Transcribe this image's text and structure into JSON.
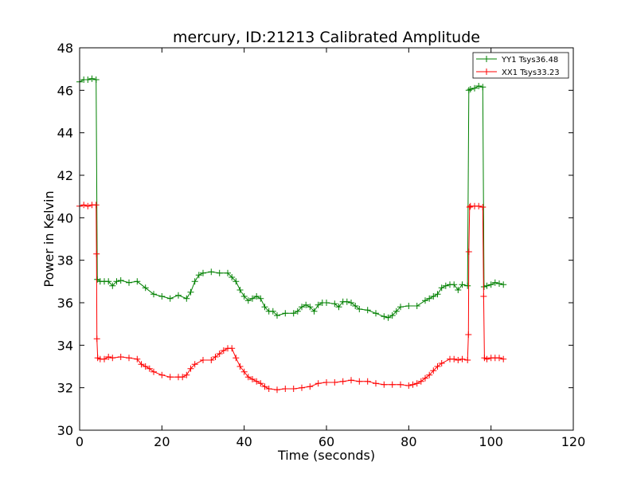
{
  "chart_data": {
    "type": "line",
    "title": "mercury, ID:21213 Calibrated Amplitude",
    "xlabel": "Time (seconds)",
    "ylabel": "Power in Kelvin",
    "xlim": [
      0,
      120
    ],
    "ylim": [
      30,
      48
    ],
    "xticks": [
      0,
      20,
      40,
      60,
      80,
      100,
      120
    ],
    "yticks": [
      30,
      32,
      34,
      36,
      38,
      40,
      42,
      44,
      46,
      48
    ],
    "grid": false,
    "legend_position": "top-right",
    "marker": "+",
    "series": [
      {
        "name": "YY1 Tsys36.48",
        "color": "#008000",
        "points": [
          [
            0.0,
            46.4
          ],
          [
            1.0,
            46.5
          ],
          [
            2.0,
            46.5
          ],
          [
            3.0,
            46.55
          ],
          [
            4.0,
            46.5
          ],
          [
            4.3,
            37.1
          ],
          [
            5.0,
            37.0
          ],
          [
            6.0,
            37.0
          ],
          [
            7.0,
            37.0
          ],
          [
            8.0,
            36.8
          ],
          [
            9.0,
            37.0
          ],
          [
            10.0,
            37.05
          ],
          [
            12.0,
            36.95
          ],
          [
            14.0,
            37.0
          ],
          [
            16.0,
            36.7
          ],
          [
            18.0,
            36.4
          ],
          [
            20.0,
            36.3
          ],
          [
            22.0,
            36.2
          ],
          [
            24.0,
            36.35
          ],
          [
            26.0,
            36.2
          ],
          [
            27.0,
            36.5
          ],
          [
            28.0,
            37.0
          ],
          [
            29.0,
            37.3
          ],
          [
            30.0,
            37.4
          ],
          [
            32.0,
            37.45
          ],
          [
            34.0,
            37.4
          ],
          [
            36.0,
            37.4
          ],
          [
            37.0,
            37.2
          ],
          [
            38.0,
            37.0
          ],
          [
            39.0,
            36.6
          ],
          [
            40.0,
            36.3
          ],
          [
            41.0,
            36.1
          ],
          [
            42.0,
            36.2
          ],
          [
            43.0,
            36.3
          ],
          [
            44.0,
            36.2
          ],
          [
            45.0,
            35.8
          ],
          [
            46.0,
            35.6
          ],
          [
            47.0,
            35.6
          ],
          [
            48.0,
            35.4
          ],
          [
            50.0,
            35.5
          ],
          [
            52.0,
            35.5
          ],
          [
            53.0,
            35.6
          ],
          [
            54.0,
            35.8
          ],
          [
            55.0,
            35.9
          ],
          [
            56.0,
            35.8
          ],
          [
            57.0,
            35.6
          ],
          [
            58.0,
            35.9
          ],
          [
            59.0,
            36.0
          ],
          [
            60.0,
            36.0
          ],
          [
            62.0,
            35.95
          ],
          [
            63.0,
            35.8
          ],
          [
            64.0,
            36.05
          ],
          [
            65.0,
            36.05
          ],
          [
            66.0,
            36.0
          ],
          [
            67.0,
            35.85
          ],
          [
            68.0,
            35.7
          ],
          [
            70.0,
            35.65
          ],
          [
            72.0,
            35.5
          ],
          [
            74.0,
            35.35
          ],
          [
            75.0,
            35.3
          ],
          [
            76.0,
            35.4
          ],
          [
            77.0,
            35.6
          ],
          [
            78.0,
            35.8
          ],
          [
            80.0,
            35.85
          ],
          [
            82.0,
            35.85
          ],
          [
            84.0,
            36.1
          ],
          [
            85.0,
            36.2
          ],
          [
            86.0,
            36.3
          ],
          [
            87.0,
            36.4
          ],
          [
            88.0,
            36.7
          ],
          [
            89.0,
            36.8
          ],
          [
            90.0,
            36.85
          ],
          [
            91.0,
            36.85
          ],
          [
            92.0,
            36.6
          ],
          [
            93.0,
            36.85
          ],
          [
            94.3,
            36.8
          ],
          [
            94.6,
            46.0
          ],
          [
            95.0,
            46.05
          ],
          [
            96.0,
            46.1
          ],
          [
            97.0,
            46.2
          ],
          [
            98.0,
            46.15
          ],
          [
            98.3,
            36.75
          ],
          [
            99.0,
            36.8
          ],
          [
            100.0,
            36.85
          ],
          [
            101.0,
            36.95
          ],
          [
            102.0,
            36.9
          ],
          [
            103.0,
            36.85
          ]
        ]
      },
      {
        "name": "XX1 Tsys33.23",
        "color": "#ff0000",
        "points": [
          [
            0.0,
            40.55
          ],
          [
            1.0,
            40.6
          ],
          [
            2.0,
            40.55
          ],
          [
            3.0,
            40.6
          ],
          [
            4.0,
            40.6
          ],
          [
            4.1,
            38.3
          ],
          [
            4.2,
            34.3
          ],
          [
            4.4,
            33.4
          ],
          [
            5.0,
            33.35
          ],
          [
            6.0,
            33.35
          ],
          [
            7.0,
            33.45
          ],
          [
            8.0,
            33.4
          ],
          [
            10.0,
            33.45
          ],
          [
            12.0,
            33.4
          ],
          [
            14.0,
            33.35
          ],
          [
            15.0,
            33.1
          ],
          [
            16.0,
            33.0
          ],
          [
            17.0,
            32.9
          ],
          [
            18.0,
            32.75
          ],
          [
            20.0,
            32.6
          ],
          [
            22.0,
            32.5
          ],
          [
            24.0,
            32.5
          ],
          [
            25.0,
            32.5
          ],
          [
            26.0,
            32.6
          ],
          [
            27.0,
            32.9
          ],
          [
            28.0,
            33.1
          ],
          [
            30.0,
            33.3
          ],
          [
            32.0,
            33.3
          ],
          [
            33.0,
            33.45
          ],
          [
            34.0,
            33.6
          ],
          [
            35.0,
            33.75
          ],
          [
            36.0,
            33.85
          ],
          [
            37.0,
            33.85
          ],
          [
            38.0,
            33.4
          ],
          [
            39.0,
            33.0
          ],
          [
            40.0,
            32.75
          ],
          [
            41.0,
            32.5
          ],
          [
            42.0,
            32.4
          ],
          [
            43.0,
            32.3
          ],
          [
            44.0,
            32.2
          ],
          [
            45.0,
            32.05
          ],
          [
            46.0,
            31.95
          ],
          [
            48.0,
            31.9
          ],
          [
            50.0,
            31.95
          ],
          [
            52.0,
            31.95
          ],
          [
            54.0,
            32.0
          ],
          [
            56.0,
            32.05
          ],
          [
            58.0,
            32.2
          ],
          [
            60.0,
            32.25
          ],
          [
            62.0,
            32.25
          ],
          [
            64.0,
            32.3
          ],
          [
            66.0,
            32.35
          ],
          [
            68.0,
            32.3
          ],
          [
            70.0,
            32.3
          ],
          [
            72.0,
            32.2
          ],
          [
            74.0,
            32.15
          ],
          [
            76.0,
            32.15
          ],
          [
            78.0,
            32.15
          ],
          [
            80.0,
            32.1
          ],
          [
            81.0,
            32.15
          ],
          [
            82.0,
            32.2
          ],
          [
            83.0,
            32.3
          ],
          [
            84.0,
            32.45
          ],
          [
            85.0,
            32.6
          ],
          [
            86.0,
            32.8
          ],
          [
            87.0,
            33.0
          ],
          [
            88.0,
            33.15
          ],
          [
            90.0,
            33.35
          ],
          [
            91.0,
            33.35
          ],
          [
            92.0,
            33.3
          ],
          [
            93.0,
            33.35
          ],
          [
            94.3,
            33.3
          ],
          [
            94.5,
            34.5
          ],
          [
            94.6,
            38.4
          ],
          [
            94.8,
            40.5
          ],
          [
            95.0,
            40.55
          ],
          [
            96.0,
            40.55
          ],
          [
            97.0,
            40.55
          ],
          [
            98.0,
            40.5
          ],
          [
            98.2,
            36.3
          ],
          [
            98.4,
            33.4
          ],
          [
            99.0,
            33.35
          ],
          [
            100.0,
            33.4
          ],
          [
            101.0,
            33.4
          ],
          [
            102.0,
            33.4
          ],
          [
            103.0,
            33.35
          ]
        ]
      }
    ]
  }
}
